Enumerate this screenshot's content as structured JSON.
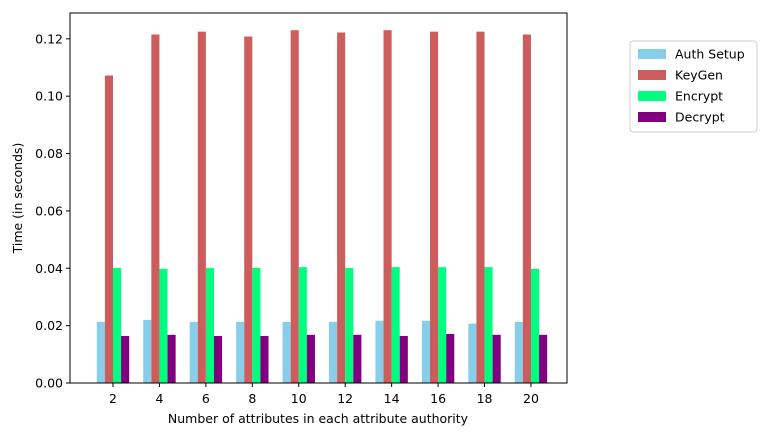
{
  "chart_data": {
    "type": "bar",
    "title": "",
    "xlabel": "Number of attributes in each attribute authority",
    "ylabel": "Time (in seconds)",
    "ylim": [
      0,
      0.129
    ],
    "yticks": [
      "0.00",
      "0.02",
      "0.04",
      "0.06",
      "0.08",
      "0.10",
      "0.12"
    ],
    "categories": [
      "2",
      "4",
      "6",
      "8",
      "10",
      "12",
      "14",
      "16",
      "18",
      "20"
    ],
    "legend_position": "right, outside plot area",
    "series": [
      {
        "name": "Auth Setup",
        "color": "#87ceeb",
        "values": [
          0.0213,
          0.022,
          0.0213,
          0.0213,
          0.0213,
          0.0213,
          0.0217,
          0.0217,
          0.0207,
          0.0213
        ]
      },
      {
        "name": "KeyGen",
        "color": "#cd5c5c",
        "values": [
          0.1072,
          0.1215,
          0.1225,
          0.1208,
          0.123,
          0.1222,
          0.123,
          0.1225,
          0.1225,
          0.1215
        ]
      },
      {
        "name": "Encrypt",
        "color": "#00ff7f",
        "values": [
          0.0401,
          0.0398,
          0.0401,
          0.0401,
          0.0404,
          0.0401,
          0.0404,
          0.0404,
          0.0404,
          0.0398
        ]
      },
      {
        "name": "Decrypt",
        "color": "#800080",
        "values": [
          0.0164,
          0.0168,
          0.0164,
          0.0164,
          0.0168,
          0.0168,
          0.0164,
          0.0171,
          0.0168,
          0.0168
        ]
      }
    ]
  }
}
